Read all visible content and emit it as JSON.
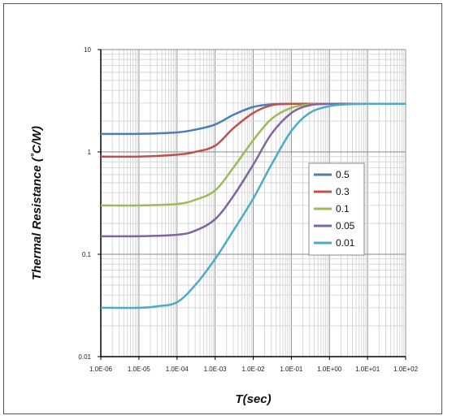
{
  "chart_data": {
    "type": "line",
    "title": "",
    "xlabel": "T(sec)",
    "ylabel": "Thermal Resistance  (˚C/W)",
    "x_scale": "log",
    "y_scale": "log",
    "xlim": [
      1e-06,
      100
    ],
    "ylim": [
      0.01,
      10
    ],
    "x_tick_labels": [
      "1.0E-06",
      "1.0E-05",
      "1.0E-04",
      "1.0E-03",
      "1.0E-02",
      "1.0E-01",
      "1.0E+00",
      "1.0E+01",
      "1.0E+02"
    ],
    "y_tick_labels": [
      "0.01",
      "0.1",
      "1",
      "10"
    ],
    "grid": true,
    "legend_position": "right-middle",
    "series": [
      {
        "name": "0.5",
        "color": "#4a7ebb",
        "x": [
          1e-06,
          1e-05,
          0.0001,
          0.0003,
          0.001,
          0.003,
          0.01,
          0.03,
          0.1,
          1,
          10,
          100
        ],
        "y": [
          1.5,
          1.5,
          1.55,
          1.65,
          1.85,
          2.3,
          2.75,
          2.92,
          2.95,
          2.95,
          2.95,
          2.95
        ]
      },
      {
        "name": "0.3",
        "color": "#c0504d",
        "x": [
          1e-06,
          1e-05,
          0.0001,
          0.0003,
          0.001,
          0.003,
          0.01,
          0.03,
          0.1,
          1,
          10,
          100
        ],
        "y": [
          0.9,
          0.9,
          0.94,
          1.0,
          1.15,
          1.7,
          2.4,
          2.85,
          2.95,
          2.95,
          2.95,
          2.95
        ]
      },
      {
        "name": "0.1",
        "color": "#9bbb59",
        "x": [
          1e-06,
          1e-05,
          0.0001,
          0.0003,
          0.001,
          0.003,
          0.01,
          0.03,
          0.1,
          0.3,
          1,
          10,
          100
        ],
        "y": [
          0.3,
          0.3,
          0.31,
          0.34,
          0.42,
          0.7,
          1.3,
          2.1,
          2.7,
          2.9,
          2.95,
          2.95,
          2.95
        ]
      },
      {
        "name": "0.05",
        "color": "#8064a2",
        "x": [
          1e-06,
          1e-05,
          0.0001,
          0.0003,
          0.001,
          0.003,
          0.01,
          0.03,
          0.1,
          0.3,
          1,
          10,
          100
        ],
        "y": [
          0.15,
          0.15,
          0.155,
          0.17,
          0.22,
          0.37,
          0.75,
          1.5,
          2.4,
          2.85,
          2.95,
          2.95,
          2.95
        ]
      },
      {
        "name": "0.01",
        "color": "#4bacc6",
        "x": [
          1e-06,
          1e-05,
          3e-05,
          0.0001,
          0.0003,
          0.001,
          0.003,
          0.01,
          0.03,
          0.1,
          0.3,
          1,
          3,
          10,
          100
        ],
        "y": [
          0.03,
          0.03,
          0.031,
          0.034,
          0.05,
          0.09,
          0.17,
          0.35,
          0.75,
          1.6,
          2.4,
          2.8,
          2.92,
          2.95,
          2.95
        ]
      }
    ]
  }
}
